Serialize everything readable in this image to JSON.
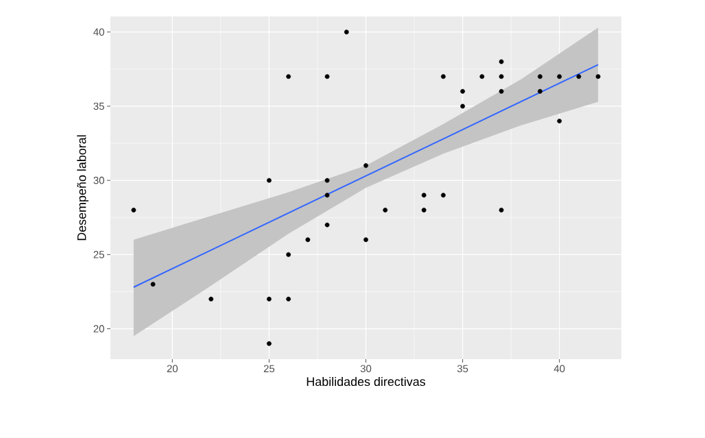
{
  "chart_data": {
    "type": "scatter",
    "xlabel": "Habilidades directivas",
    "ylabel": "Desempeño laboral",
    "xlim": [
      16.8,
      43.2
    ],
    "ylim": [
      17.95,
      41.05
    ],
    "xticks": [
      20,
      25,
      30,
      35,
      40
    ],
    "yticks": [
      20,
      25,
      30,
      35,
      40
    ],
    "grid": true,
    "series": [
      {
        "type": "line",
        "marker": "none",
        "color": "#3366ff",
        "x": [
          18,
          22,
          26,
          30,
          34,
          38,
          42
        ],
        "values": [
          22.8,
          25.3,
          27.8,
          30.3,
          32.8,
          35.3,
          37.8
        ],
        "lower": [
          19.5,
          22.9,
          26.4,
          29.5,
          31.8,
          33.7,
          35.3
        ],
        "upper": [
          26.0,
          27.6,
          29.2,
          31.0,
          33.8,
          36.8,
          40.3
        ]
      },
      {
        "marker": "circle",
        "color": "#000000",
        "x": [
          18,
          19,
          22,
          25,
          25,
          25,
          26,
          26,
          26,
          27,
          28,
          28,
          28,
          28,
          29,
          30,
          30,
          31,
          33,
          33,
          34,
          34,
          35,
          35,
          36,
          37,
          37,
          37,
          37,
          39,
          39,
          40,
          40,
          41,
          42
        ],
        "values": [
          28,
          23,
          22,
          30,
          22,
          19,
          37,
          25,
          22,
          26,
          37,
          30,
          29,
          27,
          40,
          31,
          26,
          28,
          29,
          28,
          37,
          29,
          36,
          35,
          37,
          38,
          37,
          36,
          28,
          37,
          36,
          37,
          34,
          37,
          37
        ]
      }
    ]
  }
}
